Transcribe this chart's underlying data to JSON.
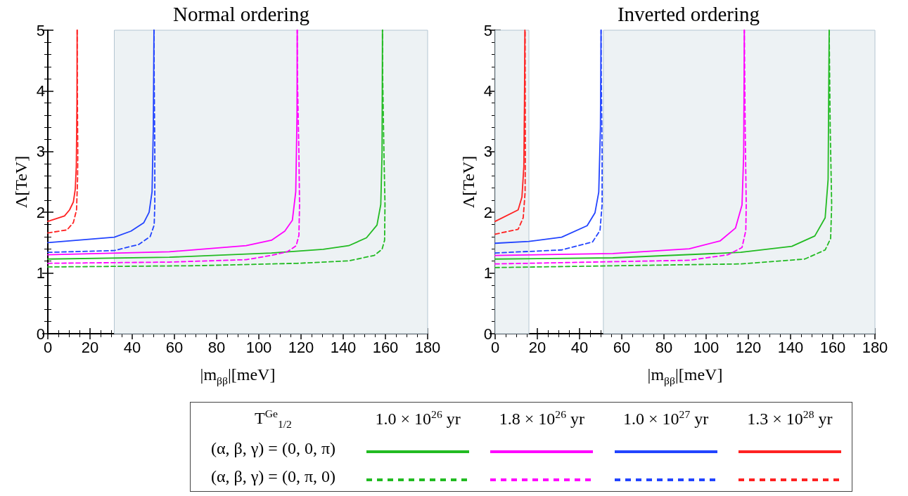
{
  "chart_data": [
    {
      "type": "line",
      "title": "Normal ordering",
      "xlabel": "|m$_{ββ}$|[meV]",
      "ylabel": "Λ[TeV]",
      "legend": "bottom",
      "legend_title": "T$^{Ge}$$_{1/2}$",
      "annotations": [
        "(α, β, γ) = (0, 0, π)",
        "(α, β, γ) = (0, π, 0)"
      ],
      "xlim": [
        0,
        180
      ],
      "xticks": [
        0,
        20,
        40,
        60,
        80,
        100,
        120,
        140,
        160,
        180
      ],
      "ylim": [
        0,
        5
      ],
      "yticks": [
        0,
        1,
        2,
        3,
        4,
        5
      ],
      "grid": false,
      "bands": [
        {
          "axis": "x",
          "from": 31.5,
          "to": 180,
          "color": "#edf2f4"
        }
      ],
      "series": [
        {
          "name": "1.0 × 10$^{26}$ yr",
          "color": "#22bb22",
          "line_style": "solid",
          "x": [
            0,
            57.6,
            106,
            130.5,
            142.6,
            151,
            156,
            157.8,
            158.4,
            158.6
          ],
          "values": [
            1.23,
            1.26,
            1.33,
            1.39,
            1.45,
            1.58,
            1.79,
            2.13,
            2.97,
            5
          ]
        },
        {
          "name": "1.8 × 10$^{26}$ yr",
          "color": "#ff00ff",
          "line_style": "solid",
          "x": [
            0,
            57.6,
            94,
            106,
            112.3,
            115.9,
            117.5,
            118.1,
            118.2
          ],
          "values": [
            1.3,
            1.35,
            1.45,
            1.54,
            1.69,
            1.87,
            2.34,
            3.6,
            5
          ]
        },
        {
          "name": "1.0 × 10$^{27}$ yr",
          "color": "#2244ff",
          "line_style": "solid",
          "x": [
            0,
            31.5,
            39.4,
            45.5,
            48,
            49.4,
            50,
            50.3
          ],
          "values": [
            1.5,
            1.59,
            1.69,
            1.83,
            2.0,
            2.34,
            3.39,
            5
          ]
        },
        {
          "name": "1.3 × 10$^{28}$ yr",
          "color": "#ff2222",
          "line_style": "solid",
          "x": [
            0,
            7.9,
            10.3,
            12.1,
            13,
            13.5,
            13.8,
            13.9
          ],
          "values": [
            1.85,
            1.94,
            2.04,
            2.17,
            2.38,
            2.76,
            3.81,
            5
          ]
        },
        {
          "color": "#22bb22",
          "line_style": "dashed",
          "x": [
            0,
            69.8,
            118.3,
            142.6,
            154.7,
            158.4,
            159.6,
            159.8,
            159.3,
            158.7,
            158.6
          ],
          "values": [
            1.1,
            1.12,
            1.16,
            1.2,
            1.29,
            1.39,
            1.54,
            2.13,
            2.97,
            4.23,
            5
          ]
        },
        {
          "color": "#ff00ff",
          "line_style": "dashed",
          "x": [
            0,
            57.6,
            94,
            106,
            113.5,
            117.7,
            119,
            119.3,
            119,
            118.3,
            118.2
          ],
          "values": [
            1.16,
            1.18,
            1.22,
            1.29,
            1.35,
            1.45,
            1.62,
            2.13,
            2.97,
            4.23,
            5
          ]
        },
        {
          "color": "#2244ff",
          "line_style": "dashed",
          "x": [
            0,
            31.5,
            43.1,
            48.5,
            50.4,
            50.7,
            50.7,
            50.4,
            50.3
          ],
          "values": [
            1.34,
            1.37,
            1.47,
            1.6,
            1.79,
            2.13,
            2.97,
            4.23,
            5
          ]
        },
        {
          "color": "#ff2222",
          "line_style": "dashed",
          "x": [
            0,
            9.1,
            12.1,
            13.6,
            14.1,
            14.2,
            14,
            13.9
          ],
          "values": [
            1.66,
            1.71,
            1.83,
            2.04,
            2.55,
            2.97,
            4,
            5
          ]
        }
      ]
    },
    {
      "type": "line",
      "title": "Inverted ordering",
      "xlabel": "|m$_{ββ}$|[meV]",
      "ylabel": "Λ[TeV]",
      "xlim": [
        0,
        180
      ],
      "xticks": [
        0,
        20,
        40,
        60,
        80,
        100,
        120,
        140,
        160,
        180
      ],
      "ylim": [
        0,
        5
      ],
      "yticks": [
        0,
        1,
        2,
        3,
        4,
        5
      ],
      "grid": false,
      "bands": [
        {
          "axis": "x",
          "from": 0,
          "to": 16,
          "color": "#edf2f4"
        },
        {
          "axis": "x",
          "from": 51.3,
          "to": 180,
          "color": "#edf2f4"
        }
      ],
      "series": [
        {
          "color": "#22bb22",
          "line_style": "solid",
          "x": [
            0,
            55.8,
            116.4,
            140.6,
            151.5,
            156.4,
            157.8,
            158.3
          ],
          "values": [
            1.23,
            1.25,
            1.34,
            1.44,
            1.61,
            1.91,
            2.54,
            5
          ]
        },
        {
          "color": "#ff00ff",
          "line_style": "solid",
          "x": [
            0,
            55.8,
            92,
            106.7,
            113.9,
            117,
            117.8,
            118.1
          ],
          "values": [
            1.29,
            1.32,
            1.4,
            1.53,
            1.74,
            2.12,
            2.96,
            5
          ]
        },
        {
          "color": "#2244ff",
          "line_style": "solid",
          "x": [
            0,
            16,
            31.5,
            43.6,
            47.3,
            49.1,
            49.9,
            50.2
          ],
          "values": [
            1.49,
            1.52,
            1.59,
            1.78,
            1.99,
            2.33,
            3.39,
            5
          ]
        },
        {
          "color": "#ff2222",
          "line_style": "solid",
          "x": [
            0,
            10.9,
            12.7,
            13.6,
            13.9,
            14.1
          ],
          "values": [
            1.85,
            2.04,
            2.25,
            2.75,
            3.81,
            5
          ]
        },
        {
          "color": "#22bb22",
          "line_style": "dashed",
          "x": [
            0,
            116.4,
            146.7,
            156.4,
            159,
            159.5,
            158.8,
            158.3
          ],
          "values": [
            1.09,
            1.15,
            1.23,
            1.38,
            1.57,
            2.12,
            3.39,
            5
          ]
        },
        {
          "color": "#ff00ff",
          "line_style": "dashed",
          "x": [
            0,
            92,
            110.3,
            117,
            118.8,
            119,
            118.5,
            118.1
          ],
          "values": [
            1.15,
            1.21,
            1.3,
            1.42,
            1.7,
            2.12,
            3.39,
            5
          ]
        },
        {
          "color": "#2244ff",
          "line_style": "dashed",
          "x": [
            0,
            31.5,
            46.1,
            49.7,
            50.7,
            50.7,
            50.3,
            50.2
          ],
          "values": [
            1.33,
            1.38,
            1.51,
            1.7,
            2.13,
            2.97,
            4.23,
            5
          ]
        },
        {
          "color": "#ff2222",
          "line_style": "dashed",
          "x": [
            0,
            10.9,
            13.3,
            14.2,
            14.3,
            14.2
          ],
          "values": [
            1.64,
            1.72,
            1.91,
            2.33,
            2.97,
            5
          ]
        }
      ]
    }
  ]
}
